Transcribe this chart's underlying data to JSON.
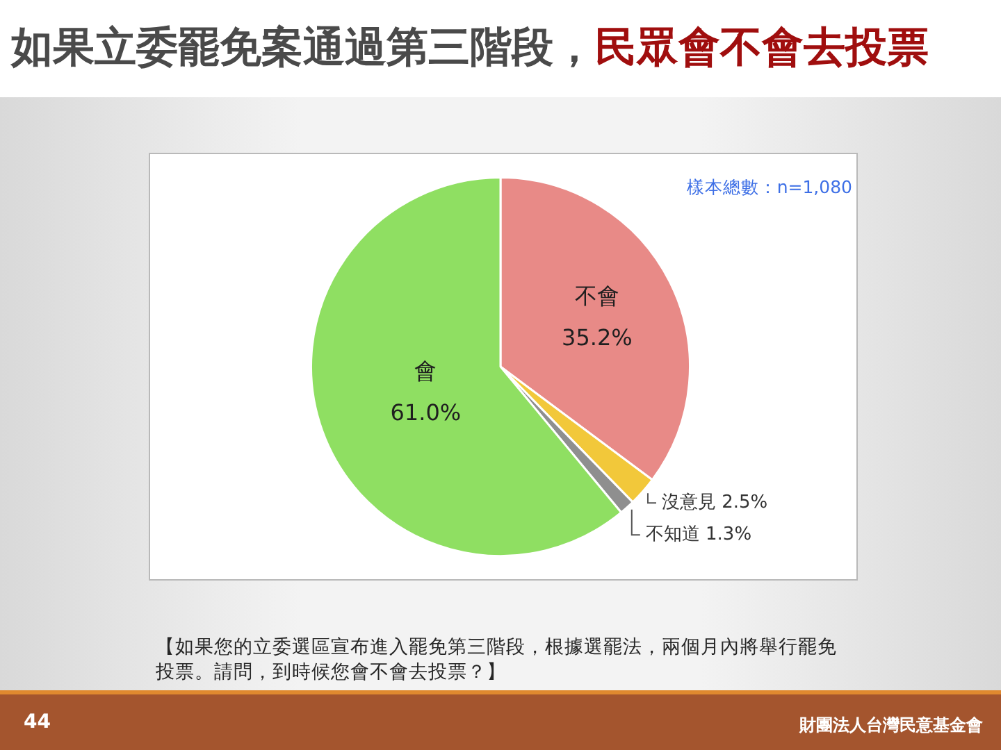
{
  "chart_data": {
    "type": "pie",
    "title": "如果立委罷免案通過第三階段，民眾會不會去投票",
    "categories": [
      "不會",
      "沒意見",
      "不知道",
      "會"
    ],
    "values": [
      35.2,
      2.5,
      1.3,
      61.0
    ],
    "colors": [
      "#e88a87",
      "#f2c83a",
      "#8f8f8f",
      "#8fdf62"
    ],
    "value_labels": [
      "35.2%",
      "2.5%",
      "1.3%",
      "61.0%"
    ],
    "annotations": [
      "樣本總數：n=1,080",
      "【如果您的立委選區宣布進入罷免第三階段，根據選罷法，兩個月內將舉行罷免投票。請問，到時候您會不會去投票？】",
      "44",
      "財團法人台灣民意基金會"
    ]
  }
}
